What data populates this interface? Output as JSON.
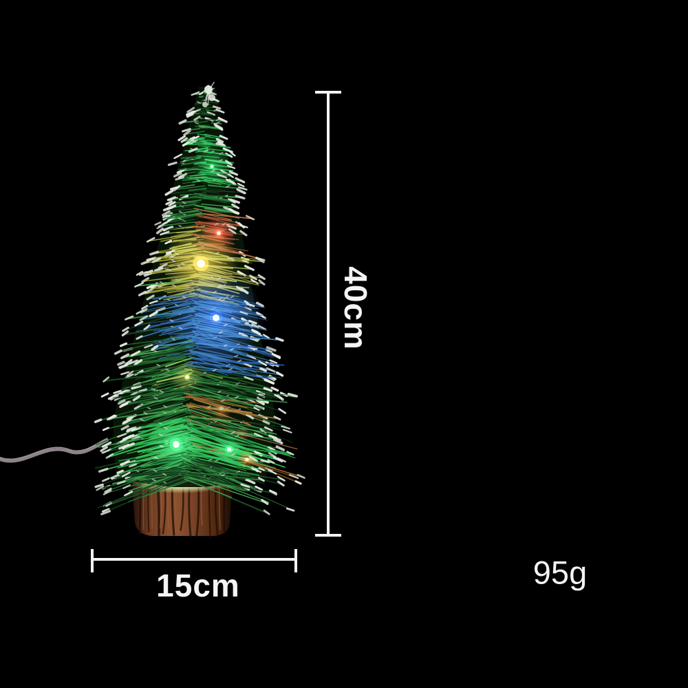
{
  "annotations": {
    "height_label": "40cm",
    "width_label": "15cm",
    "weight_label": "95g"
  },
  "colors": {
    "background": "#000000",
    "dimension_line": "#f4f4f4",
    "label_text": "#f4f4f4",
    "tree_green_dark": "#123c1c",
    "tree_green": "#1b5528",
    "tree_green_light": "#2f8c40",
    "snow_white": "#e9ece4",
    "base_brown": "#7a4427",
    "base_brown_dark": "#2a1209",
    "base_glow": "#dcedaa",
    "wire_gray": "#a49aa2",
    "light_red": "#ff4838",
    "light_yellow": "#ffd94d",
    "light_blue": "#3a6eff",
    "light_green": "#35f06a",
    "light_orange": "#ff7a3a",
    "light_lime": "#d9e45c",
    "light_redorange": "#ff5a46"
  }
}
